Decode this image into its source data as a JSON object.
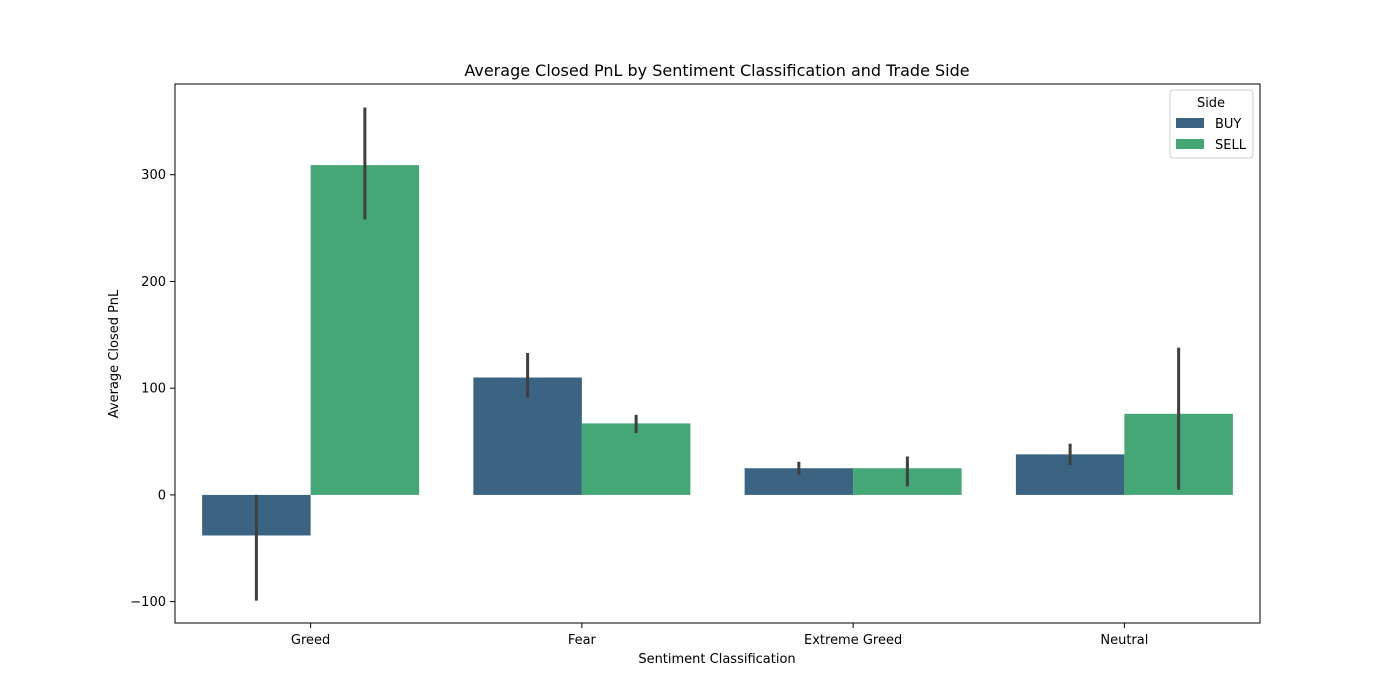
{
  "chart_data": {
    "type": "bar",
    "title": "Average Closed PnL by Sentiment Classification and Trade Side",
    "xlabel": "Sentiment Classification",
    "ylabel": "Average Closed PnL",
    "categories": [
      "Greed",
      "Fear",
      "Extreme Greed",
      "Neutral"
    ],
    "ylim": [
      -120,
      385
    ],
    "yticks": [
      -100,
      0,
      100,
      200,
      300
    ],
    "ytick_labels": [
      "−100",
      "0",
      "100",
      "200",
      "300"
    ],
    "legend_title": "Side",
    "legend_position": "top-right",
    "grid": false,
    "series": [
      {
        "name": "BUY",
        "color": "#3b6482",
        "values": [
          -38,
          110,
          25,
          38
        ],
        "error_low": [
          -99,
          91,
          19,
          28
        ],
        "error_high": [
          0,
          133,
          31,
          48
        ]
      },
      {
        "name": "SELL",
        "color": "#45a775",
        "values": [
          309,
          67,
          25,
          76
        ],
        "error_low": [
          258,
          58,
          8,
          5
        ],
        "error_high": [
          363,
          75,
          36,
          138
        ]
      }
    ]
  }
}
